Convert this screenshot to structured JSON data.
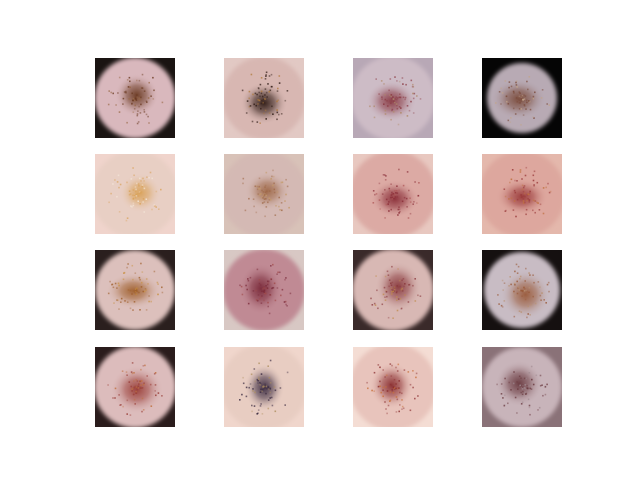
{
  "grid": {
    "rows": 4,
    "cols": 4
  },
  "tiles": [
    {
      "bg": "#1a1412",
      "disc": "#d9b8bd",
      "core": "#6b3a22",
      "spot": "#9a6a48",
      "dark": 0.35
    },
    {
      "bg": "#e2c9c4",
      "disc": "#d8b7b2",
      "core": "#2e1a14",
      "spot": "#b07a3a",
      "dark": 0.25
    },
    {
      "bg": "#b8a8b6",
      "disc": "#cdbcc6",
      "core": "#8a3a44",
      "spot": "#b08a6a",
      "dark": 0.2
    },
    {
      "bg": "#050505",
      "disc": "#b8aab4",
      "core": "#7a4a3a",
      "spot": "#c2a48a",
      "dark": 0.9
    },
    {
      "bg": "#f0d4cc",
      "disc": "#e8cfc4",
      "core": "#d9a25a",
      "spot": "#f4e6d8",
      "dark": 0.05
    },
    {
      "bg": "#d8c2b8",
      "disc": "#d4b9b4",
      "core": "#a06a4a",
      "spot": "#c49a6a",
      "dark": 0.1
    },
    {
      "bg": "#e8c8c0",
      "disc": "#dcaaa4",
      "core": "#8a2e38",
      "spot": "#b05a5a",
      "dark": 0.05
    },
    {
      "bg": "#e4b8ac",
      "disc": "#dda79e",
      "core": "#9a3a3a",
      "spot": "#c0703e",
      "dark": 0.08
    },
    {
      "bg": "#2a1f1e",
      "disc": "#dcc0bc",
      "core": "#a0602e",
      "spot": "#c99040",
      "dark": 0.4
    },
    {
      "bg": "#d8c8c4",
      "disc": "#c08a94",
      "core": "#7a2a3a",
      "spot": "#a04a4a",
      "dark": 0.3
    },
    {
      "bg": "#3a2a2a",
      "disc": "#d8b8b4",
      "core": "#8a3a3e",
      "spot": "#c08a4a",
      "dark": 0.3
    },
    {
      "bg": "#151010",
      "disc": "#c8bcc4",
      "core": "#9a5a3a",
      "spot": "#b89070",
      "dark": 0.6
    },
    {
      "bg": "#2a1c1c",
      "disc": "#dcbcbc",
      "core": "#9a3e38",
      "spot": "#c0703e",
      "dark": 0.3
    },
    {
      "bg": "#f0d6cc",
      "disc": "#e8cdc2",
      "core": "#3a2a40",
      "spot": "#b09060",
      "dark": 0.08
    },
    {
      "bg": "#f4ddd4",
      "disc": "#e8c4bc",
      "core": "#8a2e30",
      "spot": "#c8703a",
      "dark": 0.05
    },
    {
      "bg": "#8a7278",
      "disc": "#c8b4ba",
      "core": "#6a3a40",
      "spot": "#a08a90",
      "dark": 0.4
    }
  ]
}
